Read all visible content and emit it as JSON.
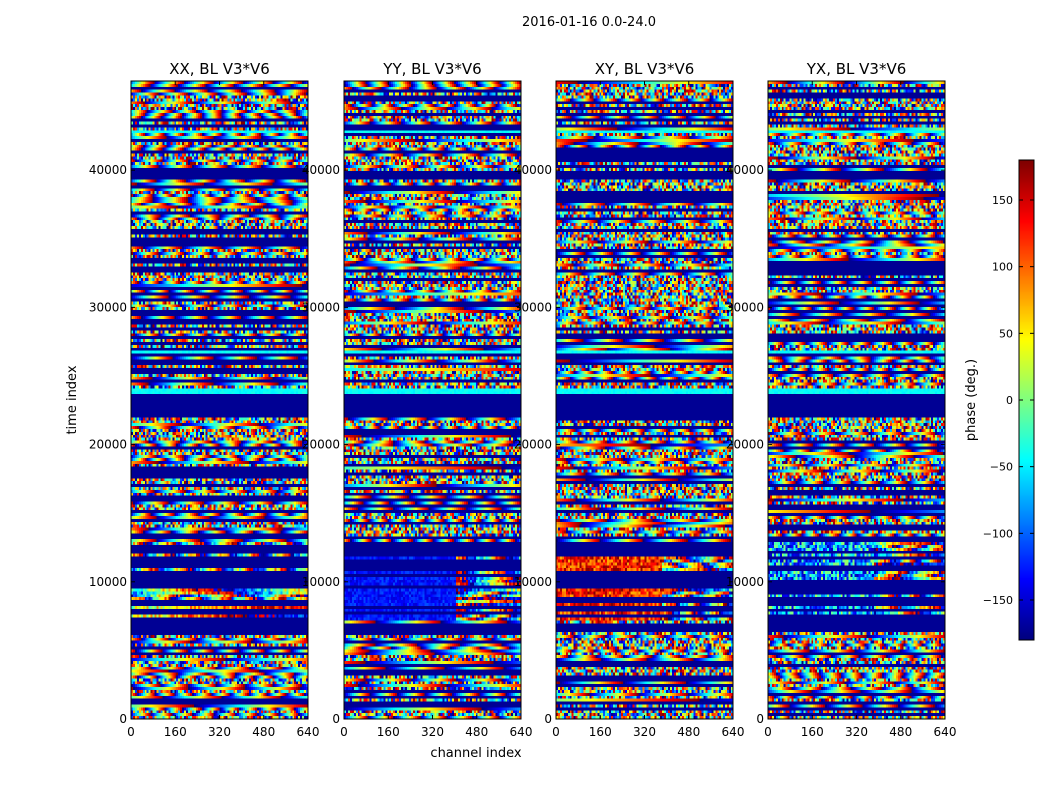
{
  "figure": {
    "suptitle": "2016-01-16 0.0-24.0",
    "xlabel": "channel index",
    "ylabel": "time index"
  },
  "chart_data": {
    "type": "heatmap",
    "layout": "1x4 panels sharing y axis, colorbar on right",
    "colormap": "jet",
    "x_range": [
      0,
      640
    ],
    "y_range": [
      0,
      46500
    ],
    "x_ticks": [
      0,
      160,
      320,
      480,
      640
    ],
    "y_ticks": [
      0,
      10000,
      20000,
      30000,
      40000
    ],
    "panels": [
      {
        "title": "XX, BL V3*V6",
        "product": "XX"
      },
      {
        "title": "YY, BL V3*V6",
        "product": "YY"
      },
      {
        "title": "XY, BL V3*V6",
        "product": "XY"
      },
      {
        "title": "YX, BL V3*V6",
        "product": "YX"
      }
    ],
    "colorbar": {
      "label": "phase (deg.)",
      "range": [
        -180,
        180
      ],
      "ticks": [
        -150,
        -100,
        -50,
        0,
        50,
        100,
        150
      ],
      "tick_labels": [
        "−150",
        "−100",
        "−50",
        "0",
        "50",
        "100",
        "150"
      ]
    },
    "time_bands": [
      {
        "t0": 23700,
        "t1": 24000,
        "kind": "cyan"
      },
      {
        "t0": 22000,
        "t1": 23700,
        "kind": "flag"
      },
      {
        "t0": 39400,
        "t1": 40000,
        "kind": "flag"
      },
      {
        "t0": 27600,
        "t1": 28000,
        "kind": "flag"
      },
      {
        "t0": 6400,
        "t1": 7000,
        "kind": "flag"
      },
      {
        "t0": 13100,
        "t1": 13300,
        "kind": "flag"
      },
      {
        "t0": 1000,
        "t1": 1200,
        "kind": "flag"
      },
      {
        "t0": 35500,
        "t1": 35700,
        "kind": "flag"
      },
      {
        "t0": 32500,
        "t1": 32700,
        "kind": "flag"
      },
      {
        "t0": 26700,
        "t1": 26900,
        "kind": "cyan"
      },
      {
        "t0": 42800,
        "t1": 43000,
        "kind": "cyan"
      },
      {
        "t0": 2900,
        "t1": 3000,
        "kind": "cyan"
      }
    ],
    "striped_region": {
      "t0": 7200,
      "t1": 12900
    }
  }
}
